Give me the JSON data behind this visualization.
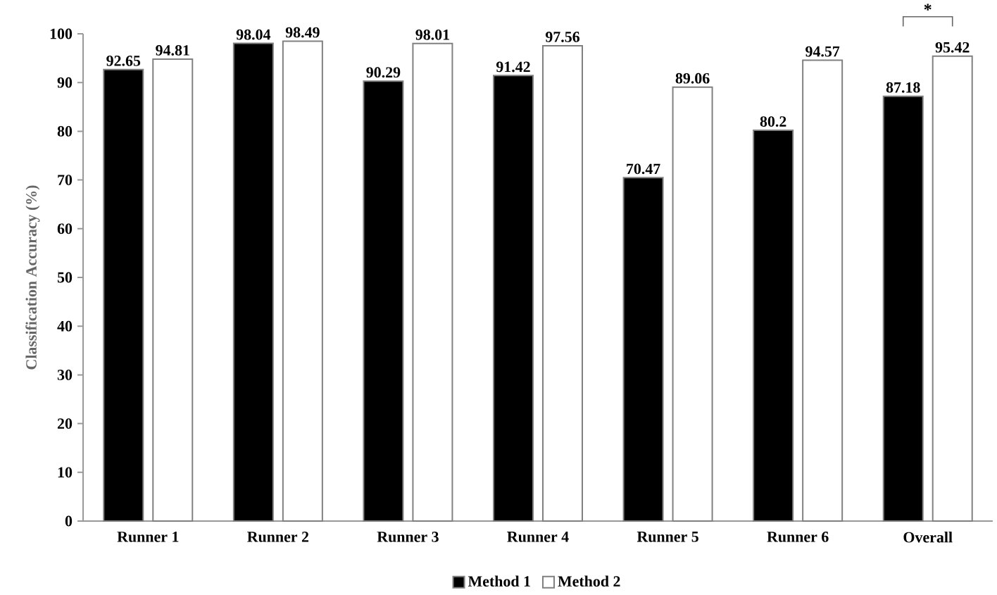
{
  "chart_data": {
    "type": "bar",
    "ylabel": "Classification Accuracy (%)",
    "categories": [
      "Runner 1",
      "Runner 2",
      "Runner 3",
      "Runner 4",
      "Runner 5",
      "Runner 6",
      "Overall"
    ],
    "series": [
      {
        "name": "Method 1",
        "color": "#000000",
        "values": [
          92.65,
          98.04,
          90.29,
          91.42,
          70.47,
          80.2,
          87.18
        ]
      },
      {
        "name": "Method 2",
        "color": "#ffffff",
        "values": [
          94.81,
          98.49,
          98.01,
          97.56,
          89.06,
          94.57,
          95.42
        ]
      }
    ],
    "ylim": [
      0,
      100
    ],
    "yticks": [
      0,
      10,
      20,
      30,
      40,
      50,
      60,
      70,
      80,
      90,
      100
    ],
    "data_labels": true,
    "legend": "bottom",
    "grid": false,
    "annotations": [
      "*"
    ]
  }
}
